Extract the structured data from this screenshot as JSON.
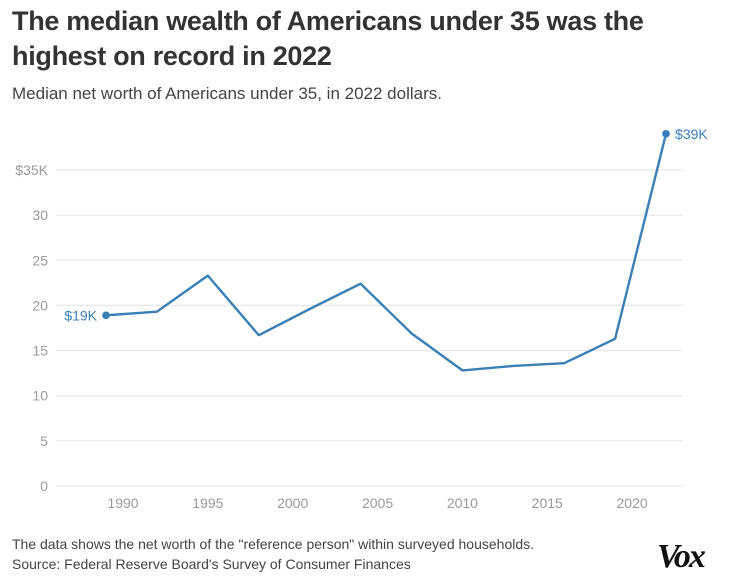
{
  "header": {
    "title": "The median wealth of Americans under 35 was the highest on record in 2022",
    "subtitle": "Median net worth of Americans under 35, in 2022 dollars."
  },
  "footer": {
    "note": "The data shows the net worth of the \"reference person\" within surveyed households.",
    "source": "Source: Federal Reserve Board's Survey of Consumer Finances",
    "logo": "Vox"
  },
  "chart_data": {
    "type": "line",
    "title": "The median wealth of Americans under 35 was the highest on record in 2022",
    "subtitle": "Median net worth of Americans under 35, in 2022 dollars.",
    "xlabel": "",
    "ylabel": "",
    "x": [
      1989,
      1992,
      1995,
      1998,
      2001,
      2004,
      2007,
      2010,
      2013,
      2016,
      2019,
      2022
    ],
    "series": [
      {
        "name": "Median net worth, under 35 (thousands of 2022 dollars)",
        "color": "#3a7fb5",
        "values": [
          18.9,
          19.3,
          23.3,
          16.7,
          19.6,
          22.4,
          16.9,
          12.8,
          13.3,
          13.6,
          16.3,
          39.0
        ]
      }
    ],
    "xlim": [
      1986,
      2023.5
    ],
    "ylim": [
      0,
      38
    ],
    "x_ticks": [
      1990,
      1995,
      2000,
      2005,
      2010,
      2015,
      2020
    ],
    "x_tick_labels": [
      "1990",
      "1995",
      "2000",
      "2005",
      "2010",
      "2015",
      "2020"
    ],
    "y_ticks": [
      0,
      5,
      10,
      15,
      20,
      25,
      30,
      35
    ],
    "y_tick_labels": [
      "0",
      "5",
      "10",
      "15",
      "20",
      "25",
      "30",
      "$35K"
    ],
    "grid": true,
    "legend": "none",
    "annotations": [
      {
        "x": 1989,
        "y": 18.9,
        "text": "$19K",
        "side": "left"
      },
      {
        "x": 2022,
        "y": 39.0,
        "text": "$39K",
        "side": "right"
      }
    ]
  }
}
